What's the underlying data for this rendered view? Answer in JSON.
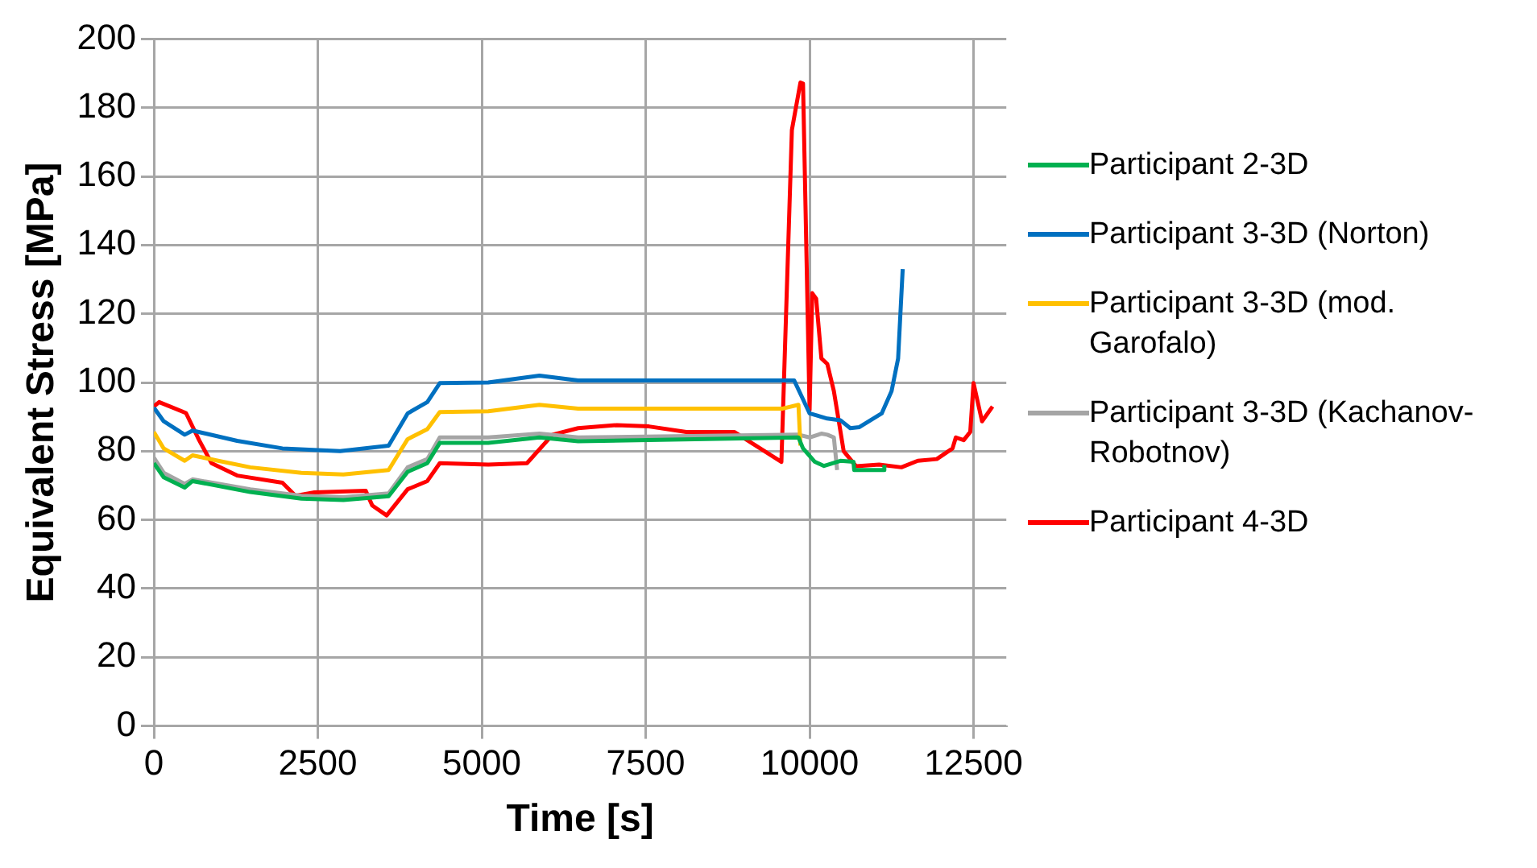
{
  "chart_data": {
    "type": "line",
    "xlabel": "Time [s]",
    "ylabel": "Equivalent Stress [MPa]",
    "xlim": [
      0,
      13000
    ],
    "xticks": [
      0,
      2500,
      5000,
      7500,
      10000,
      12500
    ],
    "ylim": [
      0,
      200
    ],
    "yticks": [
      0,
      20,
      40,
      60,
      80,
      100,
      120,
      140,
      160,
      180,
      200
    ],
    "grid": true,
    "legend": "right",
    "marker": "none",
    "line_style": "solid",
    "series": [
      {
        "name": "Participant 2-3D",
        "color": "#00b050",
        "x": [
          0,
          150,
          470,
          590,
          1470,
          2250,
          2890,
          3580,
          3870,
          4170,
          4360,
          5100,
          5880,
          6470,
          9830,
          9900,
          10080,
          10220,
          10470,
          10670,
          10680,
          11130,
          11140
        ],
        "values": [
          76.5,
          72.4,
          69.4,
          71.3,
          68.1,
          66.2,
          65.8,
          66.9,
          74,
          76.5,
          82.4,
          82.4,
          84,
          82.9,
          84,
          80.8,
          76.9,
          75.7,
          77.2,
          76.9,
          74.5,
          74.5,
          76
        ]
      },
      {
        "name": "Participant 3-3D (Norton)",
        "color": "#0070c0",
        "x": [
          0,
          150,
          470,
          590,
          1270,
          1960,
          2840,
          3580,
          3870,
          4170,
          4360,
          5100,
          5880,
          6470,
          9764,
          9880,
          10000,
          10270,
          10470,
          10620,
          10760,
          11100,
          11250,
          11350,
          11420
        ],
        "values": [
          92.7,
          88.7,
          84.8,
          86,
          83,
          80.8,
          80,
          81.6,
          91,
          94.3,
          99.8,
          100,
          102,
          100.6,
          100.6,
          95.9,
          91,
          89.5,
          89,
          86.7,
          87,
          91,
          97.5,
          107,
          133
        ]
      },
      {
        "name": "Participant 3-3D (mod. Garofalo)",
        "color": "#ffc000",
        "x": [
          0,
          150,
          470,
          590,
          980,
          1470,
          2250,
          2890,
          3580,
          3870,
          4170,
          4360,
          5100,
          5880,
          6470,
          9590,
          9830,
          9860
        ],
        "values": [
          85.6,
          80.8,
          77.2,
          78.8,
          77.2,
          75.3,
          73.7,
          73.2,
          74.5,
          83.5,
          86.4,
          91.4,
          91.6,
          93.5,
          92.4,
          92.4,
          93.5,
          81.6
        ]
      },
      {
        "name": "Participant 3-3D (Kachanov-Robotnov)",
        "color": "#a5a5a5",
        "x": [
          0,
          150,
          470,
          590,
          1470,
          2250,
          2890,
          3580,
          3870,
          4170,
          4360,
          5100,
          5880,
          6470,
          9830,
          10000,
          10180,
          10270,
          10370,
          10420
        ],
        "values": [
          78.1,
          73.7,
          70.5,
          71.8,
          68.9,
          67,
          66.6,
          67.7,
          75.3,
          77.7,
          84,
          84,
          85.1,
          84,
          84.8,
          84,
          85.1,
          84.8,
          84,
          74.5
        ]
      },
      {
        "name": "Participant 4-3D",
        "color": "#ff0000",
        "x": [
          0,
          80,
          490,
          690,
          880,
          1270,
          1960,
          2160,
          2450,
          3230,
          3330,
          3550,
          3870,
          4170,
          4360,
          5100,
          5690,
          6080,
          6470,
          7060,
          7550,
          8120,
          8850,
          9570,
          9730,
          9860,
          9900,
          10000,
          10040,
          10100,
          10180,
          10270,
          10370,
          10520,
          10710,
          11060,
          11400,
          11650,
          11940,
          12180,
          12230,
          12350,
          12450,
          12500,
          12630,
          12790
        ],
        "values": [
          93,
          94.3,
          91.1,
          83.2,
          76.5,
          72.9,
          70.8,
          67,
          68,
          68.5,
          64.2,
          61.3,
          68.9,
          71.3,
          76.5,
          76.1,
          76.5,
          84.8,
          86.7,
          87.6,
          87.2,
          85.6,
          85.6,
          76.9,
          173.5,
          187.3,
          187,
          91.9,
          126,
          124.4,
          107,
          105.4,
          97.5,
          80,
          75.6,
          76.1,
          75.3,
          77.2,
          77.7,
          80.8,
          84,
          83.2,
          85.6,
          99.8,
          88.7,
          93
        ]
      }
    ]
  }
}
